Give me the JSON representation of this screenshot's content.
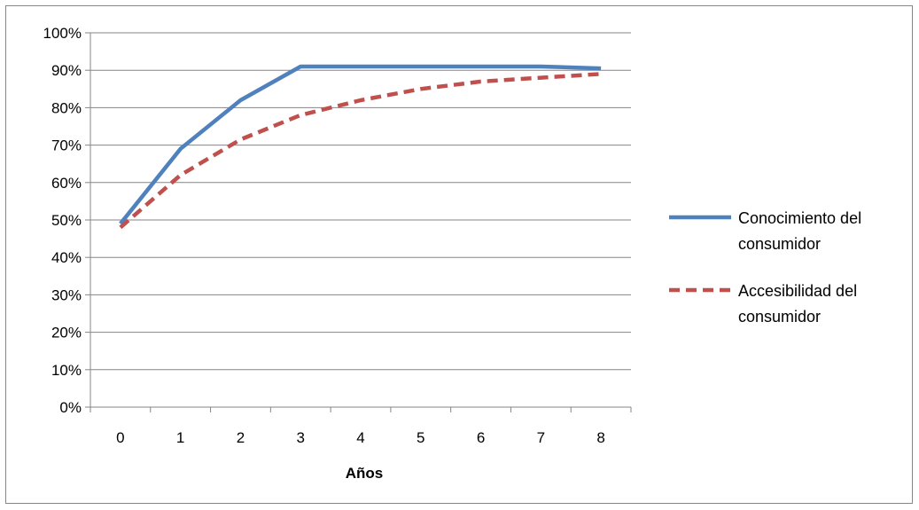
{
  "chart_data": {
    "type": "line",
    "x": [
      0,
      1,
      2,
      3,
      4,
      5,
      6,
      7,
      8
    ],
    "xlabel": "Años",
    "ylabel": "",
    "ylim": [
      0,
      1
    ],
    "y_ticks": [
      "0%",
      "10%",
      "20%",
      "30%",
      "40%",
      "50%",
      "60%",
      "70%",
      "80%",
      "90%",
      "100%"
    ],
    "grid": true,
    "legend_position": "right",
    "series": [
      {
        "name": "Conocimiento del consumidor",
        "name_lines": [
          "Conocimiento del",
          "consumidor"
        ],
        "color": "#4f81bd",
        "dash": "solid",
        "values": [
          0.49,
          0.69,
          0.82,
          0.91,
          0.91,
          0.91,
          0.91,
          0.91,
          0.905
        ]
      },
      {
        "name": "Accesibilidad del consumidor",
        "name_lines": [
          "Accesibilidad del",
          "consumidor"
        ],
        "color": "#c0504d",
        "dash": "dashed",
        "values": [
          0.48,
          0.62,
          0.715,
          0.78,
          0.82,
          0.85,
          0.87,
          0.88,
          0.89
        ]
      }
    ]
  }
}
